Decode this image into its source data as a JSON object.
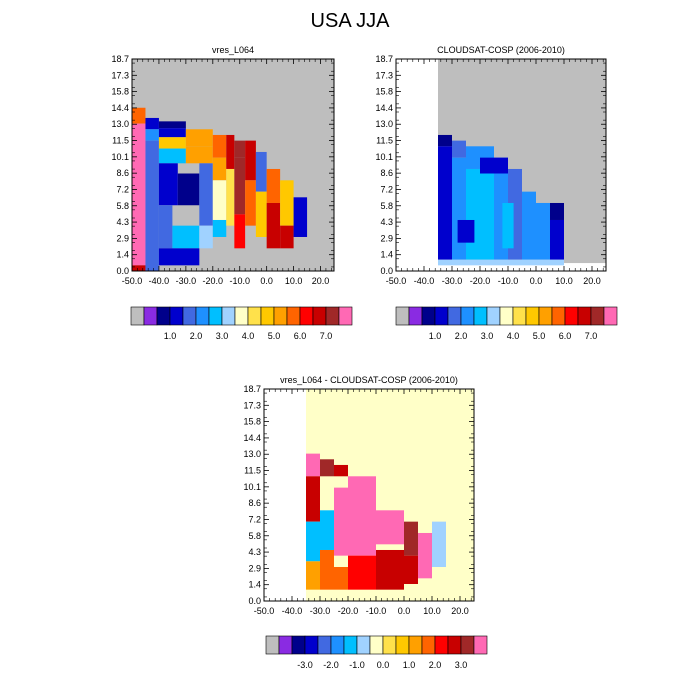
{
  "title": "USA JJA",
  "y_tick_labels": [
    "0.0",
    "1.4",
    "2.9",
    "4.3",
    "5.8",
    "7.2",
    "8.6",
    "10.1",
    "11.5",
    "13.0",
    "14.4",
    "15.8",
    "17.3",
    "18.7"
  ],
  "x_tick_labels": [
    "-50.0",
    "-40.0",
    "-30.0",
    "-20.0",
    "-10.0",
    "0.0",
    "10.0",
    "20.0"
  ],
  "palettes": {
    "abs": [
      "#bebebe",
      "#8a2be2",
      "#00008b",
      "#0000cd",
      "#4169e1",
      "#1e90ff",
      "#00bfff",
      "#a0d2ff",
      "#ffffc8",
      "#ffe14b",
      "#ffc800",
      "#ffa000",
      "#ff6400",
      "#ff0000",
      "#c80000",
      "#a02828",
      "#ff69b4"
    ],
    "diff": [
      "#bebebe",
      "#8a2be2",
      "#00008b",
      "#0000cd",
      "#4169e1",
      "#1e90ff",
      "#00bfff",
      "#a0d2ff",
      "#ffffc8",
      "#ffe14b",
      "#ffc800",
      "#ffa000",
      "#ff6400",
      "#ff0000",
      "#c80000",
      "#a02828",
      "#ff69b4"
    ]
  },
  "chart_data": [
    {
      "type": "heatmap",
      "title": "vres_L064",
      "xlim": [
        -50,
        25
      ],
      "ylim": [
        0,
        18.7
      ],
      "colorbar": {
        "labels": [
          "1.0",
          "2.0",
          "3.0",
          "4.0",
          "5.0",
          "6.0",
          "7.0"
        ],
        "levels": [
          0.5,
          1,
          1.5,
          2,
          2.5,
          3,
          3.5,
          4,
          4.5,
          5,
          5.5,
          6,
          6.5,
          7,
          7.5
        ]
      },
      "cells": [
        {
          "x0": -50,
          "x1": -45,
          "y0": 13.0,
          "y1": 14.4,
          "v": 5.5
        },
        {
          "x0": -50,
          "x1": -45,
          "y0": 0.5,
          "y1": 13.0,
          "v": 8.0
        },
        {
          "x0": -50,
          "x1": -45,
          "y0": 0.0,
          "y1": 0.5,
          "v": 6.5
        },
        {
          "x0": -45,
          "x1": -40,
          "y0": 12.5,
          "y1": 13.5,
          "v": 1.0
        },
        {
          "x0": -45,
          "x1": -40,
          "y0": 11.5,
          "y1": 12.5,
          "v": 2.0
        },
        {
          "x0": -45,
          "x1": -40,
          "y0": 0.0,
          "y1": 11.5,
          "v": 1.5
        },
        {
          "x0": -40,
          "x1": -30,
          "y0": 12.6,
          "y1": 13.2,
          "v": 0.8
        },
        {
          "x0": -40,
          "x1": -30,
          "y0": 11.8,
          "y1": 12.6,
          "v": 1.2
        },
        {
          "x0": -40,
          "x1": -30,
          "y0": 10.8,
          "y1": 11.8,
          "v": 4.5
        },
        {
          "x0": -40,
          "x1": -30,
          "y0": 9.5,
          "y1": 10.8,
          "v": 2.8
        },
        {
          "x0": -40,
          "x1": -33,
          "y0": 5.8,
          "y1": 9.5,
          "v": 1.2
        },
        {
          "x0": -33,
          "x1": -25,
          "y0": 5.8,
          "y1": 8.6,
          "v": 0.8
        },
        {
          "x0": -40,
          "x1": -35,
          "y0": 2.0,
          "y1": 5.8,
          "v": 1.5
        },
        {
          "x0": -35,
          "x1": -25,
          "y0": 2.0,
          "y1": 4.0,
          "v": 2.5
        },
        {
          "x0": -40,
          "x1": -25,
          "y0": 0.5,
          "y1": 2.0,
          "v": 1.0
        },
        {
          "x0": -30,
          "x1": -20,
          "y0": 11.0,
          "y1": 12.5,
          "v": 5.2
        },
        {
          "x0": -30,
          "x1": -20,
          "y0": 9.5,
          "y1": 11.0,
          "v": 5.0
        },
        {
          "x0": -25,
          "x1": -20,
          "y0": 4.0,
          "y1": 9.5,
          "v": 1.5
        },
        {
          "x0": -25,
          "x1": -20,
          "y0": 2.0,
          "y1": 4.0,
          "v": 3.0
        },
        {
          "x0": -20,
          "x1": -15,
          "y0": 10.0,
          "y1": 12.0,
          "v": 5.7
        },
        {
          "x0": -20,
          "x1": -15,
          "y0": 8.0,
          "y1": 10.0,
          "v": 5.0
        },
        {
          "x0": -20,
          "x1": -15,
          "y0": 4.5,
          "y1": 8.0,
          "v": 3.5
        },
        {
          "x0": -20,
          "x1": -15,
          "y0": 3.0,
          "y1": 4.5,
          "v": 2.5
        },
        {
          "x0": -15,
          "x1": -12,
          "y0": 9.0,
          "y1": 12.0,
          "v": 6.8
        },
        {
          "x0": -15,
          "x1": -12,
          "y0": 4.0,
          "y1": 9.0,
          "v": 4.0
        },
        {
          "x0": -12,
          "x1": -8,
          "y0": 10.0,
          "y1": 11.5,
          "v": 7.0
        },
        {
          "x0": -12,
          "x1": -8,
          "y0": 5.0,
          "y1": 10.0,
          "v": 7.2
        },
        {
          "x0": -12,
          "x1": -8,
          "y0": 2.0,
          "y1": 5.0,
          "v": 6.0
        },
        {
          "x0": -8,
          "x1": -4,
          "y0": 8.0,
          "y1": 11.5,
          "v": 6.5
        },
        {
          "x0": -8,
          "x1": -4,
          "y0": 4.0,
          "y1": 8.0,
          "v": 5.5
        },
        {
          "x0": -4,
          "x1": 0,
          "y0": 7.0,
          "y1": 10.5,
          "v": 1.5
        },
        {
          "x0": -4,
          "x1": 0,
          "y0": 3.0,
          "y1": 7.0,
          "v": 4.5
        },
        {
          "x0": 0,
          "x1": 5,
          "y0": 6.0,
          "y1": 9.0,
          "v": 5.5
        },
        {
          "x0": 0,
          "x1": 5,
          "y0": 2.0,
          "y1": 6.0,
          "v": 6.5
        },
        {
          "x0": 5,
          "x1": 10,
          "y0": 4.0,
          "y1": 8.0,
          "v": 4.8
        },
        {
          "x0": 5,
          "x1": 10,
          "y0": 2.0,
          "y1": 4.0,
          "v": 6.8
        },
        {
          "x0": 10,
          "x1": 15,
          "y0": 3.0,
          "y1": 6.5,
          "v": 1.0
        }
      ]
    },
    {
      "type": "heatmap",
      "title": "CLOUDSAT-COSP (2006-2010)",
      "xlim": [
        -50,
        25
      ],
      "ylim": [
        0,
        18.7
      ],
      "colorbar": {
        "labels": [
          "1.0",
          "2.0",
          "3.0",
          "4.0",
          "5.0",
          "6.0",
          "7.0"
        ],
        "levels": [
          0.5,
          1,
          1.5,
          2,
          2.5,
          3,
          3.5,
          4,
          4.5,
          5,
          5.5,
          6,
          6.5,
          7,
          7.5
        ]
      },
      "cells": [
        {
          "x0": -35,
          "x1": -30,
          "y0": 11.0,
          "y1": 12.0,
          "v": 0.8
        },
        {
          "x0": -35,
          "x1": -30,
          "y0": 1.0,
          "y1": 11.0,
          "v": 1.2
        },
        {
          "x0": -30,
          "x1": -25,
          "y0": 10.0,
          "y1": 11.5,
          "v": 1.5
        },
        {
          "x0": -30,
          "x1": -25,
          "y0": 1.0,
          "y1": 10.0,
          "v": 2.0
        },
        {
          "x0": -25,
          "x1": -15,
          "y0": 9.0,
          "y1": 11.0,
          "v": 2.2
        },
        {
          "x0": -25,
          "x1": -15,
          "y0": 1.0,
          "y1": 9.0,
          "v": 2.5
        },
        {
          "x0": -15,
          "x1": -10,
          "y0": 1.0,
          "y1": 10.0,
          "v": 2.0
        },
        {
          "x0": -10,
          "x1": -5,
          "y0": 1.0,
          "y1": 9.0,
          "v": 1.8
        },
        {
          "x0": -5,
          "x1": 0,
          "y0": 1.0,
          "y1": 7.0,
          "v": 2.3
        },
        {
          "x0": 0,
          "x1": 5,
          "y0": 1.0,
          "y1": 6.0,
          "v": 2.0
        },
        {
          "x0": 5,
          "x1": 10,
          "y0": 1.0,
          "y1": 4.5,
          "v": 1.2
        },
        {
          "x0": -35,
          "x1": 10,
          "y0": 0.5,
          "y1": 1.0,
          "v": 3.3
        },
        {
          "x0": -20,
          "x1": -10,
          "y0": 8.6,
          "y1": 10.0,
          "v": 1.2
        },
        {
          "x0": -28,
          "x1": -22,
          "y0": 2.5,
          "y1": 4.5,
          "v": 1.0
        },
        {
          "x0": -12,
          "x1": -8,
          "y0": 2.0,
          "y1": 6.0,
          "v": 2.6
        },
        {
          "x0": 5,
          "x1": 10,
          "y0": 4.5,
          "y1": 6.0,
          "v": 0.8
        }
      ]
    },
    {
      "type": "heatmap",
      "title": "vres_L064 - CLOUDSAT-COSP (2006-2010)",
      "xlim": [
        -50,
        25
      ],
      "ylim": [
        0,
        18.7
      ],
      "colorbar": {
        "labels": [
          "-3.0",
          "-2.0",
          "-1.0",
          "0.0",
          "1.0",
          "2.0",
          "3.0"
        ],
        "levels": [
          -3.5,
          -3,
          -2.5,
          -2,
          -1.5,
          -1,
          -0.5,
          0,
          0.5,
          1,
          1.5,
          2,
          2.5,
          3,
          3.5
        ]
      },
      "cells": [
        {
          "x0": -35,
          "x1": -30,
          "y0": 15.0,
          "y1": 18.0,
          "v": -0.5
        },
        {
          "x0": -35,
          "x1": -30,
          "y0": 11.0,
          "y1": 13.0,
          "v": 3.5
        },
        {
          "x0": -35,
          "x1": -30,
          "y0": 7.0,
          "y1": 11.0,
          "v": 2.8
        },
        {
          "x0": -35,
          "x1": -30,
          "y0": 3.5,
          "y1": 7.0,
          "v": -1.5
        },
        {
          "x0": -35,
          "x1": -30,
          "y0": 1.0,
          "y1": 3.5,
          "v": 1.3
        },
        {
          "x0": -30,
          "x1": -25,
          "y0": 11.0,
          "y1": 12.5,
          "v": 3.3
        },
        {
          "x0": -30,
          "x1": -25,
          "y0": 4.5,
          "y1": 8.0,
          "v": -1.5
        },
        {
          "x0": -30,
          "x1": -25,
          "y0": 1.0,
          "y1": 4.5,
          "v": 1.5
        },
        {
          "x0": -25,
          "x1": -20,
          "y0": 11.0,
          "y1": 12.0,
          "v": 2.5
        },
        {
          "x0": -25,
          "x1": -20,
          "y0": 4.0,
          "y1": 10.0,
          "v": 3.8
        },
        {
          "x0": -25,
          "x1": -20,
          "y0": 1.0,
          "y1": 3.0,
          "v": 1.6
        },
        {
          "x0": -20,
          "x1": -10,
          "y0": 4.0,
          "y1": 11.0,
          "v": 3.8
        },
        {
          "x0": -20,
          "x1": -10,
          "y0": 1.0,
          "y1": 4.0,
          "v": 2.2
        },
        {
          "x0": -10,
          "x1": 0,
          "y0": 5.0,
          "y1": 8.0,
          "v": 3.7
        },
        {
          "x0": -10,
          "x1": 0,
          "y0": 1.0,
          "y1": 4.5,
          "v": 2.5
        },
        {
          "x0": 0,
          "x1": 5,
          "y0": 4.0,
          "y1": 7.0,
          "v": 3.2
        },
        {
          "x0": 0,
          "x1": 5,
          "y0": 1.5,
          "y1": 4.0,
          "v": 2.8
        },
        {
          "x0": 5,
          "x1": 10,
          "y0": 2.0,
          "y1": 6.0,
          "v": 3.6
        },
        {
          "x0": 10,
          "x1": 20,
          "y0": 8.0,
          "y1": 12.0,
          "v": -0.3
        },
        {
          "x0": 10,
          "x1": 15,
          "y0": 3.0,
          "y1": 7.0,
          "v": -0.6
        }
      ]
    }
  ]
}
